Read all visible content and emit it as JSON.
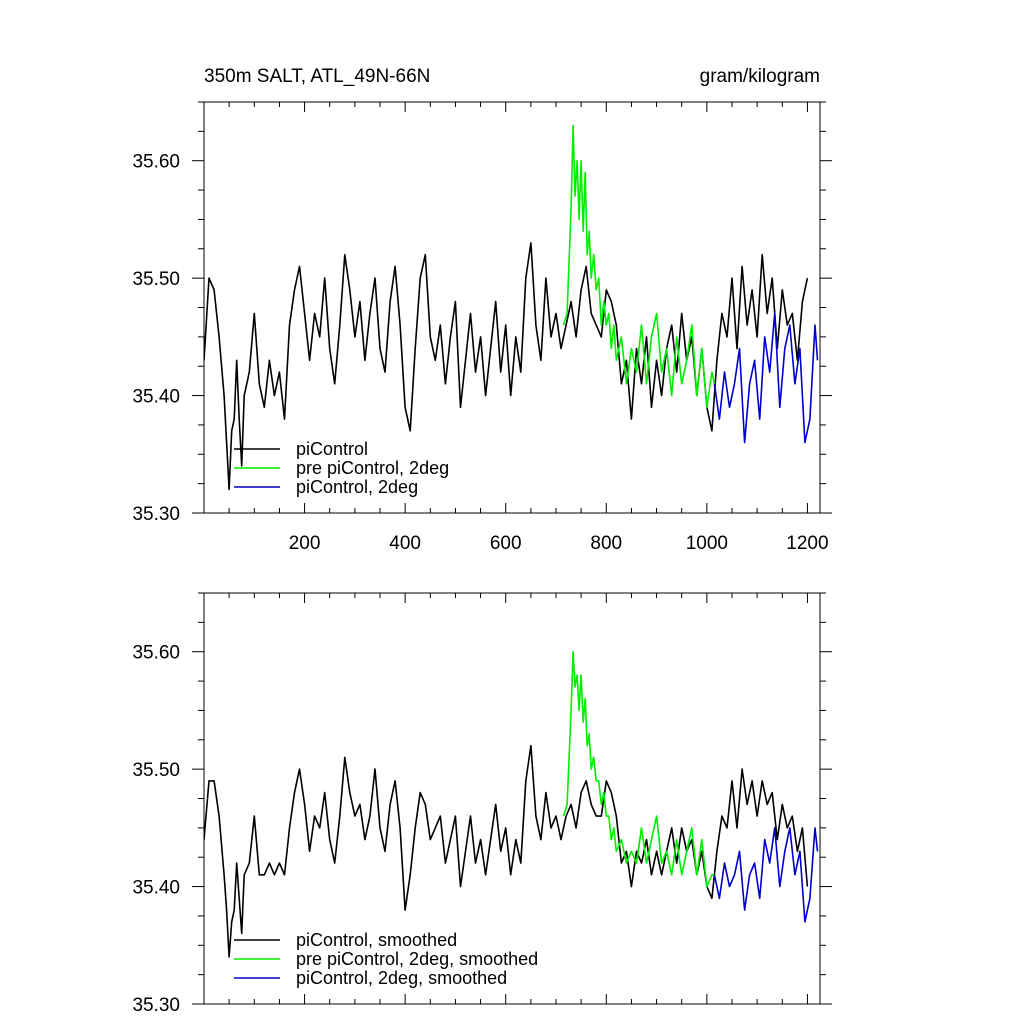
{
  "figure": {
    "title_left": "350m SALT, ATL_49N-66N",
    "title_right": "gram/kilogram"
  },
  "colors": {
    "piControl": "#000000",
    "pre_piControl_2deg": "#00ee00",
    "piControl_2deg": "#0000cc"
  },
  "chart_data": [
    {
      "type": "line",
      "name": "raw",
      "title": "350m SALT, ATL_49N-66N",
      "units": "gram/kilogram",
      "xlim": [
        0,
        1225
      ],
      "ylim": [
        35.3,
        35.65
      ],
      "x_ticks": [
        200,
        400,
        600,
        800,
        1000,
        1200
      ],
      "x_tick_labels": [
        "200",
        "400",
        "600",
        "800",
        "1000",
        "1200"
      ],
      "y_ticks": [
        35.3,
        35.4,
        35.5,
        35.6
      ],
      "y_tick_labels": [
        "35.30",
        "35.40",
        "35.50",
        "35.60"
      ],
      "legend": [
        "piControl",
        "pre piControl, 2deg",
        "piControl, 2deg"
      ],
      "series": [
        {
          "name": "piControl",
          "x": [
            0,
            10,
            20,
            30,
            40,
            45,
            50,
            55,
            60,
            65,
            70,
            75,
            80,
            90,
            100,
            110,
            120,
            130,
            140,
            150,
            160,
            170,
            180,
            190,
            200,
            210,
            220,
            230,
            240,
            250,
            260,
            270,
            280,
            290,
            300,
            310,
            320,
            330,
            340,
            350,
            360,
            370,
            380,
            390,
            400,
            410,
            420,
            430,
            440,
            450,
            460,
            470,
            480,
            490,
            500,
            510,
            520,
            530,
            540,
            550,
            560,
            570,
            580,
            590,
            600,
            610,
            620,
            630,
            640,
            650,
            660,
            670,
            680,
            690,
            700,
            710,
            720,
            730,
            740,
            750,
            760,
            770,
            780,
            790,
            800,
            810,
            820,
            830,
            840,
            850,
            860,
            870,
            880,
            890,
            900,
            910,
            920,
            930,
            940,
            950,
            960,
            970,
            980,
            990,
            1000,
            1010,
            1020,
            1030,
            1040,
            1050,
            1060,
            1070,
            1080,
            1090,
            1100,
            1110,
            1120,
            1130,
            1140,
            1150,
            1160,
            1170,
            1180,
            1190,
            1200
          ],
          "values": [
            35.43,
            35.5,
            35.49,
            35.45,
            35.4,
            35.36,
            35.32,
            35.37,
            35.38,
            35.43,
            35.38,
            35.34,
            35.4,
            35.42,
            35.47,
            35.41,
            35.39,
            35.43,
            35.4,
            35.42,
            35.38,
            35.46,
            35.49,
            35.51,
            35.47,
            35.43,
            35.47,
            35.45,
            35.5,
            35.44,
            35.41,
            35.46,
            35.52,
            35.49,
            35.45,
            35.48,
            35.43,
            35.47,
            35.5,
            35.44,
            35.42,
            35.48,
            35.51,
            35.46,
            35.39,
            35.37,
            35.44,
            35.5,
            35.52,
            35.45,
            35.43,
            35.46,
            35.41,
            35.45,
            35.48,
            35.39,
            35.43,
            35.47,
            35.42,
            35.45,
            35.4,
            35.44,
            35.48,
            35.42,
            35.46,
            35.4,
            35.45,
            35.42,
            35.5,
            35.53,
            35.46,
            35.43,
            35.5,
            35.45,
            35.47,
            35.44,
            35.46,
            35.48,
            35.45,
            35.49,
            35.51,
            35.47,
            35.46,
            35.45,
            35.49,
            35.48,
            35.46,
            35.41,
            35.43,
            35.38,
            35.44,
            35.41,
            35.45,
            35.39,
            35.43,
            35.4,
            35.44,
            35.46,
            35.42,
            35.47,
            35.43,
            35.45,
            35.4,
            35.44,
            35.39,
            35.37,
            35.43,
            35.47,
            35.45,
            35.5,
            35.44,
            35.51,
            35.46,
            35.49,
            35.45,
            35.52,
            35.47,
            35.5,
            35.44,
            35.49,
            35.46,
            35.47,
            35.43,
            35.48,
            35.5
          ]
        },
        {
          "name": "pre piControl, 2deg",
          "x": [
            715,
            722,
            730,
            734,
            738,
            742,
            746,
            750,
            754,
            758,
            762,
            766,
            770,
            775,
            780,
            785,
            790,
            795,
            800,
            805,
            810,
            815,
            820,
            830,
            840,
            850,
            860,
            870,
            880,
            890,
            900,
            910,
            920,
            930,
            940,
            950,
            960,
            970,
            980,
            990,
            1000,
            1010,
            1015
          ],
          "values": [
            35.46,
            35.47,
            35.56,
            35.63,
            35.57,
            35.6,
            35.55,
            35.6,
            35.54,
            35.59,
            35.52,
            35.54,
            35.5,
            35.52,
            35.49,
            35.5,
            35.46,
            35.48,
            35.46,
            35.47,
            35.44,
            35.46,
            35.43,
            35.45,
            35.41,
            35.44,
            35.42,
            35.46,
            35.41,
            35.45,
            35.47,
            35.42,
            35.44,
            35.4,
            35.45,
            35.41,
            35.43,
            35.46,
            35.4,
            35.44,
            35.39,
            35.42,
            35.41
          ]
        },
        {
          "name": "piControl, 2deg",
          "x": [
            1015,
            1025,
            1035,
            1045,
            1055,
            1065,
            1075,
            1085,
            1095,
            1105,
            1115,
            1125,
            1135,
            1145,
            1155,
            1165,
            1175,
            1185,
            1195,
            1205,
            1215,
            1220
          ],
          "values": [
            35.41,
            35.38,
            35.42,
            35.39,
            35.41,
            35.44,
            35.36,
            35.41,
            35.43,
            35.38,
            35.45,
            35.42,
            35.47,
            35.39,
            35.44,
            35.46,
            35.41,
            35.44,
            35.36,
            35.38,
            35.46,
            35.43
          ]
        }
      ]
    },
    {
      "type": "line",
      "name": "smoothed",
      "xlim": [
        0,
        1225
      ],
      "ylim": [
        35.3,
        35.65
      ],
      "y_ticks": [
        35.3,
        35.4,
        35.5,
        35.6
      ],
      "y_tick_labels": [
        "35.30",
        "35.40",
        "35.50",
        "35.60"
      ],
      "legend": [
        "piControl, smoothed",
        "pre piControl, 2deg, smoothed",
        "piControl, 2deg, smoothed"
      ],
      "series": [
        {
          "name": "piControl, smoothed",
          "x": [
            0,
            10,
            20,
            30,
            40,
            45,
            50,
            55,
            60,
            65,
            70,
            75,
            80,
            90,
            100,
            110,
            120,
            130,
            140,
            150,
            160,
            170,
            180,
            190,
            200,
            210,
            220,
            230,
            240,
            250,
            260,
            270,
            280,
            290,
            300,
            310,
            320,
            330,
            340,
            350,
            360,
            370,
            380,
            390,
            400,
            410,
            420,
            430,
            440,
            450,
            460,
            470,
            480,
            490,
            500,
            510,
            520,
            530,
            540,
            550,
            560,
            570,
            580,
            590,
            600,
            610,
            620,
            630,
            640,
            650,
            660,
            670,
            680,
            690,
            700,
            710,
            720,
            730,
            740,
            750,
            760,
            770,
            780,
            790,
            800,
            810,
            820,
            830,
            840,
            850,
            860,
            870,
            880,
            890,
            900,
            910,
            920,
            930,
            940,
            950,
            960,
            970,
            980,
            990,
            1000,
            1010,
            1020,
            1030,
            1040,
            1050,
            1060,
            1070,
            1080,
            1090,
            1100,
            1110,
            1120,
            1130,
            1140,
            1150,
            1160,
            1170,
            1180,
            1190,
            1200
          ],
          "values": [
            35.44,
            35.49,
            35.49,
            35.46,
            35.41,
            35.38,
            35.34,
            35.37,
            35.38,
            35.42,
            35.39,
            35.36,
            35.41,
            35.42,
            35.46,
            35.41,
            35.41,
            35.42,
            35.41,
            35.42,
            35.41,
            35.45,
            35.48,
            35.5,
            35.47,
            35.43,
            35.46,
            35.45,
            35.48,
            35.44,
            35.42,
            35.46,
            35.51,
            35.48,
            35.46,
            35.47,
            35.44,
            35.46,
            35.5,
            35.45,
            35.43,
            35.47,
            35.49,
            35.45,
            35.38,
            35.41,
            35.45,
            35.48,
            35.47,
            35.44,
            35.45,
            35.46,
            35.42,
            35.44,
            35.46,
            35.4,
            35.43,
            35.46,
            35.42,
            35.44,
            35.41,
            35.44,
            35.47,
            35.43,
            35.45,
            35.41,
            35.44,
            35.42,
            35.49,
            35.52,
            35.46,
            35.44,
            35.48,
            35.45,
            35.46,
            35.44,
            35.46,
            35.47,
            35.45,
            35.48,
            35.49,
            35.47,
            35.46,
            35.46,
            35.49,
            35.48,
            35.46,
            35.42,
            35.43,
            35.4,
            35.43,
            35.42,
            35.44,
            35.41,
            35.43,
            35.41,
            35.43,
            35.45,
            35.42,
            35.45,
            35.43,
            35.44,
            35.41,
            35.43,
            35.4,
            35.39,
            35.43,
            35.46,
            35.45,
            35.49,
            35.45,
            35.5,
            35.47,
            35.49,
            35.46,
            35.49,
            35.47,
            35.48,
            35.44,
            35.47,
            35.45,
            35.46,
            35.43,
            35.45,
            35.4
          ]
        },
        {
          "name": "pre piControl, 2deg, smoothed",
          "x": [
            715,
            722,
            730,
            734,
            738,
            742,
            746,
            750,
            754,
            758,
            762,
            766,
            770,
            775,
            780,
            785,
            790,
            795,
            800,
            805,
            810,
            815,
            820,
            830,
            840,
            850,
            860,
            870,
            880,
            890,
            900,
            910,
            920,
            930,
            940,
            950,
            960,
            970,
            980,
            990,
            1000,
            1010,
            1015
          ],
          "values": [
            35.46,
            35.47,
            35.55,
            35.6,
            35.57,
            35.58,
            35.55,
            35.58,
            35.54,
            35.56,
            35.52,
            35.53,
            35.5,
            35.51,
            35.49,
            35.49,
            35.47,
            35.48,
            35.46,
            35.46,
            35.44,
            35.45,
            35.43,
            35.44,
            35.42,
            35.43,
            35.42,
            35.45,
            35.42,
            35.44,
            35.46,
            35.42,
            35.43,
            35.41,
            35.44,
            35.41,
            35.43,
            35.45,
            35.41,
            35.44,
            35.4,
            35.41,
            35.41
          ]
        },
        {
          "name": "piControl, 2deg, smoothed",
          "x": [
            1015,
            1025,
            1035,
            1045,
            1055,
            1065,
            1075,
            1085,
            1095,
            1105,
            1115,
            1125,
            1135,
            1145,
            1155,
            1165,
            1175,
            1185,
            1195,
            1205,
            1215,
            1220
          ],
          "values": [
            35.41,
            35.39,
            35.42,
            35.4,
            35.41,
            35.43,
            35.38,
            35.41,
            35.42,
            35.39,
            35.44,
            35.42,
            35.45,
            35.4,
            35.43,
            35.45,
            35.41,
            35.43,
            35.37,
            35.39,
            35.45,
            35.43
          ]
        }
      ]
    }
  ]
}
